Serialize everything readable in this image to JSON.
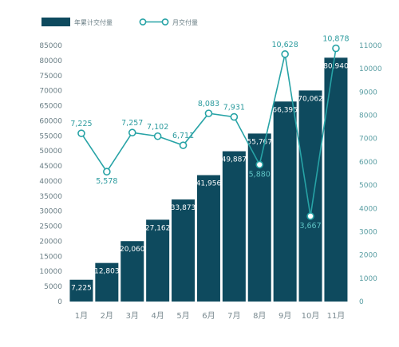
{
  "chart_data": {
    "type": "bar+line",
    "categories": [
      "1月",
      "2月",
      "3月",
      "4月",
      "5月",
      "6月",
      "7月",
      "8月",
      "9月",
      "10月",
      "11月"
    ],
    "series": [
      {
        "name": "年累计交付量",
        "type": "bar",
        "axis": "left",
        "values": [
          7225,
          12803,
          20060,
          27162,
          33873,
          41956,
          49887,
          55767,
          66395,
          70062,
          80940
        ],
        "labels": [
          "7,225",
          "12,803",
          "20,060",
          "27,162",
          "33,873",
          "41,956",
          "49,887",
          "55,767",
          "66,395",
          "70,062",
          "80,940"
        ]
      },
      {
        "name": "月交付量",
        "type": "line",
        "axis": "right",
        "values": [
          7225,
          5578,
          7257,
          7102,
          6711,
          8083,
          7931,
          5880,
          10628,
          3667,
          10878
        ],
        "labels": [
          "7,225",
          "5,578",
          "7,257",
          "7,102",
          "6,711",
          "8,083",
          "7,931",
          "5,880",
          "10,628",
          "3,667",
          "10,878"
        ]
      }
    ],
    "left_axis": {
      "ylim": [
        0,
        85000
      ],
      "ticks": [
        "0",
        "5000",
        "10000",
        "15000",
        "20000",
        "25000",
        "30000",
        "35000",
        "40000",
        "45000",
        "50000",
        "55000",
        "60000",
        "65000",
        "70000",
        "75000",
        "80000",
        "85000"
      ]
    },
    "right_axis": {
      "ylim": [
        0,
        11000
      ],
      "ticks": [
        "0",
        "1000",
        "2000",
        "3000",
        "4000",
        "5000",
        "6000",
        "7000",
        "8000",
        "9000",
        "10000",
        "11000"
      ]
    },
    "legend_position": "top-left",
    "grid": false,
    "colors": {
      "bar": "#0e4a5e",
      "line": "#27a3a6",
      "marker_fill": "#ffffff",
      "bar_label": "#ffffff",
      "line_label": "#2c9b9e"
    }
  }
}
